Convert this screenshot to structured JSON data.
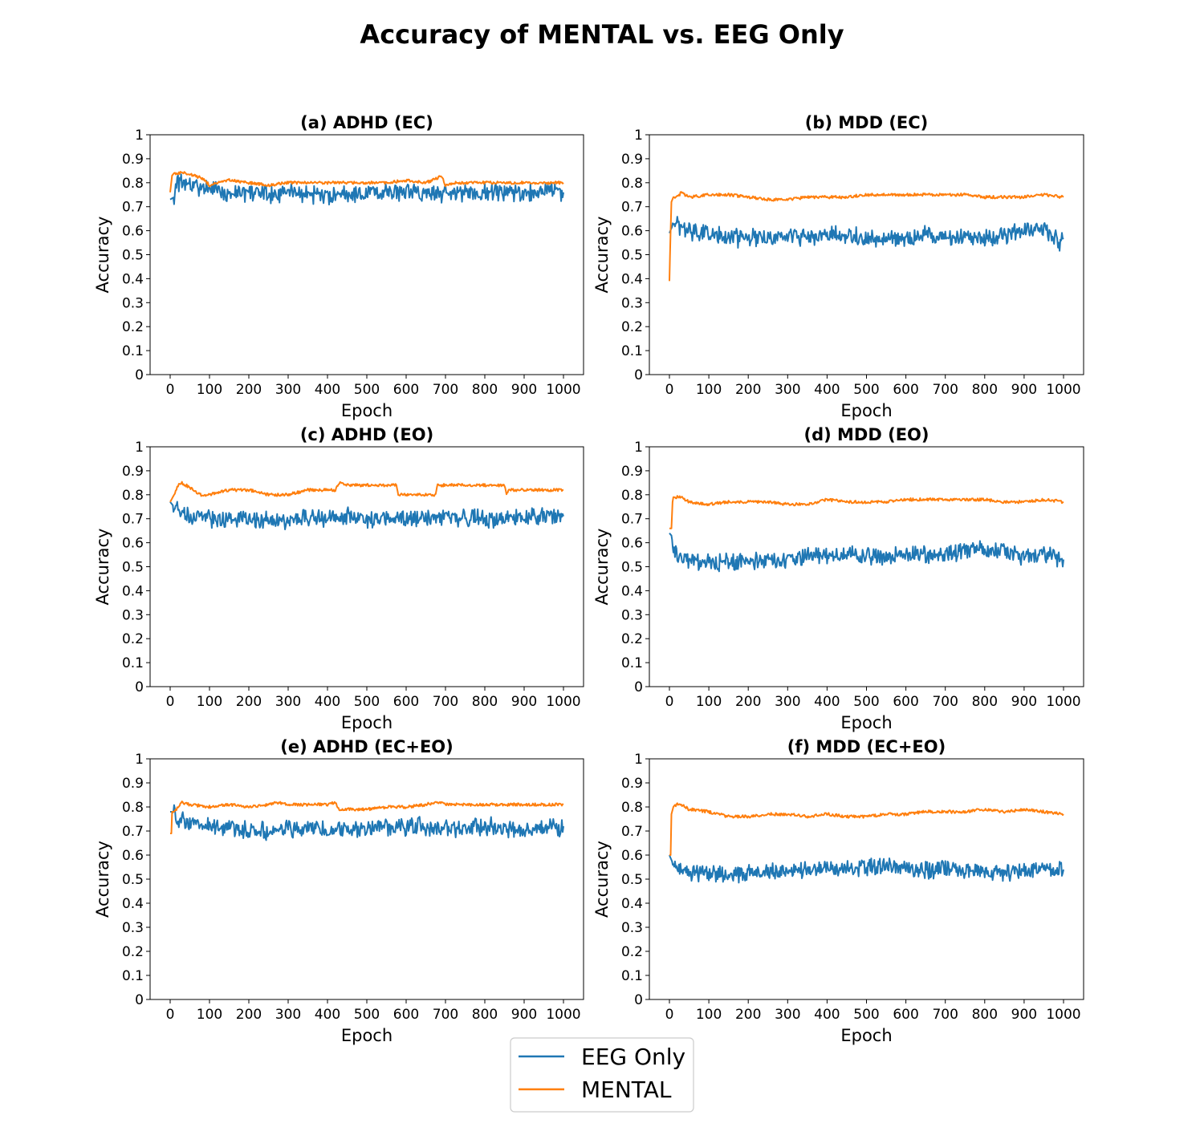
{
  "figure": {
    "title": "Accuracy of MENTAL vs. EEG Only"
  },
  "colors": {
    "eeg_only": "#1f77b4",
    "mental": "#ff7f0e"
  },
  "legend": {
    "placement": "bottom-center",
    "items": [
      {
        "label": "EEG Only",
        "color": "#1f77b4"
      },
      {
        "label": "MENTAL",
        "color": "#ff7f0e"
      }
    ]
  },
  "chart_data": [
    {
      "type": "line",
      "title": "(a) ADHD (EC)",
      "xlabel": "Epoch",
      "ylabel": "Accuracy",
      "xlim": [
        0,
        1000
      ],
      "ylim": [
        0,
        1
      ],
      "xticks": [
        0,
        100,
        200,
        300,
        400,
        500,
        600,
        700,
        800,
        900,
        1000
      ],
      "yticks": [
        0,
        0.1,
        0.2,
        0.3,
        0.4,
        0.5,
        0.6,
        0.7,
        0.8,
        0.9,
        1
      ],
      "ytick_labels": [
        "0",
        "0.1",
        "0.2",
        "0.3",
        "0.4",
        "0.5",
        "0.6",
        "0.7",
        "0.8",
        "0.9",
        "1"
      ],
      "grid": false,
      "series": [
        {
          "name": "EEG Only",
          "x": [
            0,
            10,
            20,
            30,
            50,
            75,
            100,
            150,
            200,
            250,
            300,
            350,
            400,
            450,
            500,
            550,
            600,
            650,
            700,
            750,
            800,
            850,
            900,
            950,
            1000
          ],
          "y": [
            0.73,
            0.74,
            0.8,
            0.8,
            0.79,
            0.78,
            0.77,
            0.76,
            0.76,
            0.75,
            0.76,
            0.75,
            0.74,
            0.75,
            0.76,
            0.76,
            0.76,
            0.76,
            0.75,
            0.76,
            0.76,
            0.76,
            0.76,
            0.77,
            0.76
          ]
        },
        {
          "name": "MENTAL",
          "x": [
            0,
            5,
            10,
            20,
            30,
            40,
            60,
            80,
            100,
            150,
            200,
            250,
            300,
            350,
            400,
            450,
            500,
            550,
            600,
            650,
            680,
            690,
            700,
            720,
            750,
            800,
            850,
            900,
            950,
            1000
          ],
          "y": [
            0.76,
            0.83,
            0.84,
            0.84,
            0.84,
            0.84,
            0.83,
            0.82,
            0.79,
            0.81,
            0.8,
            0.79,
            0.8,
            0.8,
            0.8,
            0.8,
            0.8,
            0.8,
            0.81,
            0.8,
            0.82,
            0.83,
            0.79,
            0.8,
            0.8,
            0.8,
            0.8,
            0.8,
            0.8,
            0.8
          ]
        }
      ]
    },
    {
      "type": "line",
      "title": "(b) MDD (EC)",
      "xlabel": "Epoch",
      "ylabel": "Accuracy",
      "xlim": [
        0,
        1000
      ],
      "ylim": [
        0,
        1
      ],
      "xticks": [
        0,
        100,
        200,
        300,
        400,
        500,
        600,
        700,
        800,
        900,
        1000
      ],
      "yticks": [
        0,
        0.1,
        0.2,
        0.3,
        0.4,
        0.5,
        0.6,
        0.7,
        0.8,
        0.9,
        1
      ],
      "ytick_labels": [
        "0",
        "0.1",
        "0.2",
        "0.3",
        "0.4",
        "0.5",
        "0.6",
        "0.7",
        "0.8",
        "0.9",
        "1"
      ],
      "grid": false,
      "series": [
        {
          "name": "EEG Only",
          "x": [
            0,
            5,
            10,
            20,
            30,
            50,
            100,
            150,
            200,
            250,
            300,
            350,
            400,
            450,
            500,
            550,
            600,
            650,
            700,
            750,
            800,
            850,
            900,
            950,
            990,
            1000
          ],
          "y": [
            0.59,
            0.61,
            0.63,
            0.62,
            0.61,
            0.6,
            0.59,
            0.57,
            0.57,
            0.57,
            0.58,
            0.57,
            0.58,
            0.58,
            0.57,
            0.57,
            0.57,
            0.58,
            0.57,
            0.57,
            0.57,
            0.58,
            0.6,
            0.6,
            0.55,
            0.57
          ]
        },
        {
          "name": "MENTAL",
          "x": [
            0,
            3,
            5,
            10,
            20,
            30,
            50,
            100,
            150,
            200,
            250,
            300,
            350,
            400,
            450,
            500,
            550,
            600,
            650,
            700,
            750,
            800,
            850,
            900,
            950,
            1000
          ],
          "y": [
            0.39,
            0.6,
            0.72,
            0.74,
            0.74,
            0.76,
            0.74,
            0.75,
            0.75,
            0.74,
            0.73,
            0.73,
            0.74,
            0.74,
            0.74,
            0.75,
            0.75,
            0.75,
            0.75,
            0.75,
            0.75,
            0.74,
            0.74,
            0.74,
            0.75,
            0.74
          ]
        }
      ]
    },
    {
      "type": "line",
      "title": "(c) ADHD (EO)",
      "xlabel": "Epoch",
      "ylabel": "Accuracy",
      "xlim": [
        0,
        1000
      ],
      "ylim": [
        0,
        1
      ],
      "xticks": [
        0,
        100,
        200,
        300,
        400,
        500,
        600,
        700,
        800,
        900,
        1000
      ],
      "yticks": [
        0,
        0.1,
        0.2,
        0.3,
        0.4,
        0.5,
        0.6,
        0.7,
        0.8,
        0.9,
        1
      ],
      "ytick_labels": [
        "0",
        "0.1",
        "0.2",
        "0.3",
        "0.4",
        "0.5",
        "0.6",
        "0.7",
        "0.8",
        "0.9",
        "1"
      ],
      "grid": false,
      "series": [
        {
          "name": "EEG Only",
          "x": [
            0,
            5,
            10,
            20,
            50,
            100,
            150,
            200,
            250,
            300,
            350,
            400,
            450,
            500,
            550,
            600,
            650,
            700,
            750,
            800,
            850,
            900,
            950,
            1000
          ],
          "y": [
            0.77,
            0.76,
            0.75,
            0.73,
            0.71,
            0.7,
            0.7,
            0.7,
            0.69,
            0.69,
            0.7,
            0.7,
            0.71,
            0.7,
            0.71,
            0.7,
            0.7,
            0.7,
            0.7,
            0.7,
            0.7,
            0.71,
            0.71,
            0.71
          ]
        },
        {
          "name": "MENTAL",
          "x": [
            0,
            10,
            20,
            30,
            50,
            75,
            100,
            150,
            200,
            250,
            300,
            350,
            400,
            420,
            430,
            450,
            500,
            550,
            575,
            580,
            600,
            650,
            675,
            680,
            700,
            750,
            800,
            850,
            855,
            860,
            900,
            950,
            1000
          ],
          "y": [
            0.77,
            0.8,
            0.84,
            0.85,
            0.83,
            0.8,
            0.8,
            0.82,
            0.82,
            0.8,
            0.8,
            0.82,
            0.82,
            0.82,
            0.85,
            0.84,
            0.84,
            0.84,
            0.84,
            0.8,
            0.8,
            0.8,
            0.8,
            0.84,
            0.84,
            0.84,
            0.84,
            0.84,
            0.8,
            0.82,
            0.82,
            0.82,
            0.82
          ]
        }
      ]
    },
    {
      "type": "line",
      "title": "(d) MDD (EO)",
      "xlabel": "Epoch",
      "ylabel": "Accuracy",
      "xlim": [
        0,
        1000
      ],
      "ylim": [
        0,
        1
      ],
      "xticks": [
        0,
        100,
        200,
        300,
        400,
        500,
        600,
        700,
        800,
        900,
        1000
      ],
      "yticks": [
        0,
        0.1,
        0.2,
        0.3,
        0.4,
        0.5,
        0.6,
        0.7,
        0.8,
        0.9,
        1
      ],
      "ytick_labels": [
        "0",
        "0.1",
        "0.2",
        "0.3",
        "0.4",
        "0.5",
        "0.6",
        "0.7",
        "0.8",
        "0.9",
        "1"
      ],
      "grid": false,
      "series": [
        {
          "name": "EEG Only",
          "x": [
            0,
            5,
            10,
            20,
            50,
            100,
            150,
            200,
            250,
            300,
            350,
            400,
            450,
            500,
            550,
            600,
            650,
            700,
            750,
            800,
            850,
            900,
            950,
            1000
          ],
          "y": [
            0.64,
            0.63,
            0.58,
            0.55,
            0.53,
            0.52,
            0.52,
            0.52,
            0.53,
            0.53,
            0.54,
            0.55,
            0.55,
            0.55,
            0.54,
            0.55,
            0.55,
            0.55,
            0.57,
            0.57,
            0.56,
            0.54,
            0.55,
            0.53
          ]
        },
        {
          "name": "MENTAL",
          "x": [
            0,
            5,
            8,
            10,
            20,
            30,
            50,
            100,
            150,
            200,
            250,
            300,
            350,
            400,
            450,
            500,
            550,
            600,
            650,
            700,
            750,
            800,
            850,
            900,
            950,
            1000
          ],
          "y": [
            0.66,
            0.66,
            0.77,
            0.79,
            0.79,
            0.79,
            0.77,
            0.76,
            0.77,
            0.77,
            0.77,
            0.76,
            0.76,
            0.78,
            0.77,
            0.77,
            0.77,
            0.78,
            0.78,
            0.78,
            0.78,
            0.78,
            0.77,
            0.77,
            0.78,
            0.77
          ]
        }
      ]
    },
    {
      "type": "line",
      "title": "(e) ADHD (EC+EO)",
      "xlabel": "Epoch",
      "ylabel": "Accuracy",
      "xlim": [
        0,
        1000
      ],
      "ylim": [
        0,
        1
      ],
      "xticks": [
        0,
        100,
        200,
        300,
        400,
        500,
        600,
        700,
        800,
        900,
        1000
      ],
      "yticks": [
        0,
        0.1,
        0.2,
        0.3,
        0.4,
        0.5,
        0.6,
        0.7,
        0.8,
        0.9,
        1
      ],
      "ytick_labels": [
        "0",
        "0.1",
        "0.2",
        "0.3",
        "0.4",
        "0.5",
        "0.6",
        "0.7",
        "0.8",
        "0.9",
        "1"
      ],
      "grid": false,
      "series": [
        {
          "name": "EEG Only",
          "x": [
            0,
            5,
            10,
            20,
            50,
            100,
            150,
            200,
            250,
            300,
            350,
            400,
            450,
            500,
            550,
            600,
            650,
            700,
            750,
            800,
            850,
            900,
            950,
            1000
          ],
          "y": [
            0.78,
            0.78,
            0.77,
            0.75,
            0.73,
            0.72,
            0.71,
            0.71,
            0.7,
            0.71,
            0.71,
            0.71,
            0.71,
            0.71,
            0.72,
            0.72,
            0.72,
            0.71,
            0.71,
            0.72,
            0.71,
            0.71,
            0.71,
            0.72
          ]
        },
        {
          "name": "MENTAL",
          "x": [
            0,
            3,
            5,
            10,
            20,
            30,
            50,
            100,
            150,
            200,
            250,
            270,
            300,
            350,
            400,
            420,
            430,
            450,
            500,
            550,
            600,
            650,
            680,
            700,
            750,
            800,
            850,
            900,
            950,
            1000
          ],
          "y": [
            0.69,
            0.69,
            0.78,
            0.78,
            0.8,
            0.82,
            0.81,
            0.8,
            0.81,
            0.8,
            0.81,
            0.82,
            0.81,
            0.81,
            0.81,
            0.82,
            0.79,
            0.79,
            0.79,
            0.8,
            0.8,
            0.81,
            0.82,
            0.81,
            0.81,
            0.81,
            0.81,
            0.81,
            0.81,
            0.81
          ]
        }
      ]
    },
    {
      "type": "line",
      "title": "(f) MDD (EC+EO)",
      "xlabel": "Epoch",
      "ylabel": "Accuracy",
      "xlim": [
        0,
        1000
      ],
      "ylim": [
        0,
        1
      ],
      "xticks": [
        0,
        100,
        200,
        300,
        400,
        500,
        600,
        700,
        800,
        900,
        1000
      ],
      "yticks": [
        0,
        0.1,
        0.2,
        0.3,
        0.4,
        0.5,
        0.6,
        0.7,
        0.8,
        0.9,
        1
      ],
      "ytick_labels": [
        "0",
        "0.1",
        "0.2",
        "0.3",
        "0.4",
        "0.5",
        "0.6",
        "0.7",
        "0.8",
        "0.9",
        "1"
      ],
      "grid": false,
      "series": [
        {
          "name": "EEG Only",
          "x": [
            0,
            5,
            10,
            20,
            50,
            100,
            150,
            200,
            250,
            300,
            350,
            400,
            450,
            500,
            550,
            600,
            650,
            700,
            750,
            800,
            850,
            900,
            950,
            1000
          ],
          "y": [
            0.6,
            0.58,
            0.56,
            0.54,
            0.53,
            0.52,
            0.52,
            0.52,
            0.53,
            0.54,
            0.54,
            0.55,
            0.55,
            0.55,
            0.55,
            0.55,
            0.54,
            0.54,
            0.54,
            0.53,
            0.53,
            0.53,
            0.54,
            0.54
          ]
        },
        {
          "name": "MENTAL",
          "x": [
            0,
            3,
            5,
            10,
            20,
            30,
            50,
            100,
            150,
            200,
            250,
            300,
            350,
            400,
            450,
            500,
            550,
            600,
            650,
            700,
            750,
            800,
            850,
            900,
            950,
            1000
          ],
          "y": [
            0.6,
            0.6,
            0.77,
            0.8,
            0.81,
            0.81,
            0.79,
            0.78,
            0.76,
            0.76,
            0.77,
            0.77,
            0.76,
            0.77,
            0.76,
            0.76,
            0.77,
            0.77,
            0.78,
            0.78,
            0.78,
            0.79,
            0.78,
            0.79,
            0.78,
            0.77
          ]
        }
      ]
    }
  ]
}
